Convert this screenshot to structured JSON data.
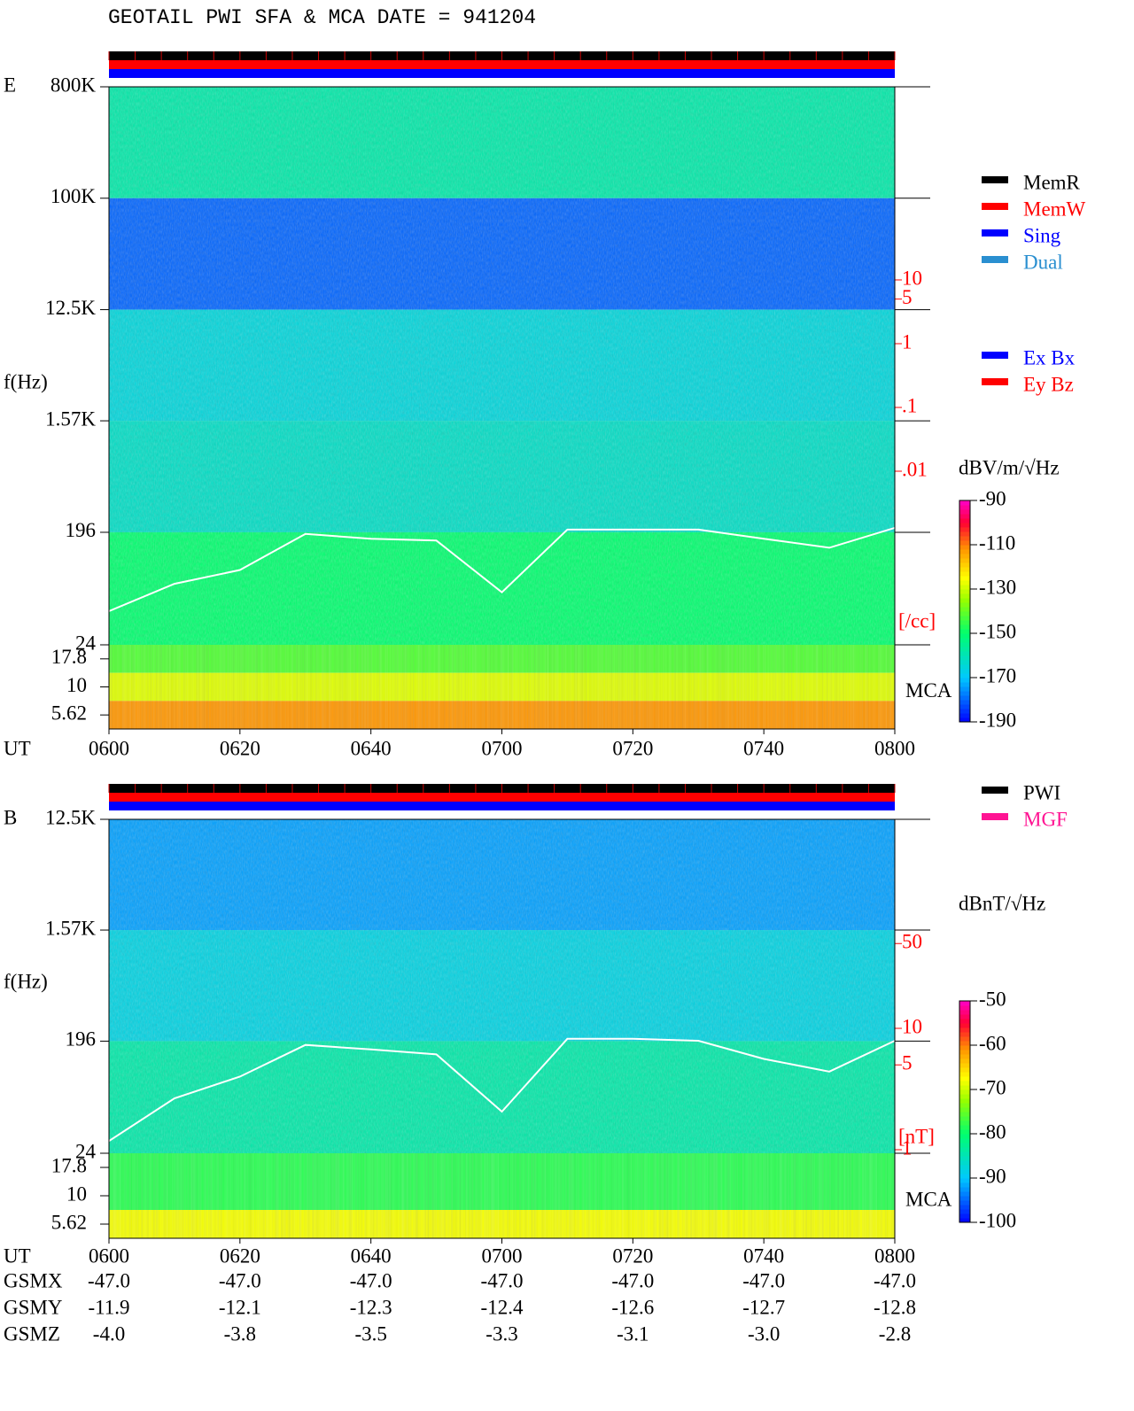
{
  "title": "GEOTAIL  PWI SFA & MCA   DATE = 941204",
  "legend_modes": [
    {
      "name": "MemR",
      "color": "#000000"
    },
    {
      "name": "MemW",
      "color": "#ff0000"
    },
    {
      "name": "Sing",
      "color": "#0000ff"
    },
    {
      "name": "Dual",
      "color": "#2a8fd0"
    }
  ],
  "legend_components": [
    {
      "name": "Ex Bx",
      "color": "#0000ff"
    },
    {
      "name": "Ey Bz",
      "color": "#ff0000"
    }
  ],
  "legend_sources": [
    {
      "name": "PWI",
      "color": "#000000"
    },
    {
      "name": "MGF",
      "color": "#ff1493"
    }
  ],
  "chart_data": [
    {
      "type": "spectrogram",
      "panel": "E",
      "ylabel": "f(Hz)",
      "xlabel": "UT",
      "yscale": "log",
      "categories": [
        "0600",
        "0620",
        "0640",
        "0700",
        "0720",
        "0740",
        "0800"
      ],
      "ylim": [
        24,
        800000
      ],
      "yticks": [
        {
          "value": 800000,
          "label": "800K"
        },
        {
          "value": 100000,
          "label": "100K"
        },
        {
          "value": 12500,
          "label": "12.5K"
        },
        {
          "value": 1570,
          "label": "1.57K"
        },
        196,
        24
      ],
      "band_levels": [
        -158,
        -180,
        -165,
        -162,
        -150
      ],
      "mca_label": "MCA",
      "mca_yticks": [
        17.8,
        10,
        5.62
      ],
      "mca_levels": [
        -142,
        -128,
        -112
      ],
      "y2ticks": [
        10,
        5,
        1,
        {
          "value": 0.1,
          "label": ".1"
        },
        {
          "value": 0.01,
          "label": ".01"
        }
      ],
      "y2label": "[/cc]",
      "line": {
        "axis": "y",
        "x": [
          "0600",
          "0610",
          "0620",
          "0630",
          "0640",
          "0650",
          "0700",
          "0710",
          "0720",
          "0730",
          "0740",
          "0750",
          "0800"
        ],
        "values": [
          45,
          75,
          97,
          190,
          174,
          168,
          64,
          206,
          206,
          206,
          174,
          147,
          213
        ]
      },
      "colorbar": {
        "label": "dBV/m/√Hz",
        "clim": [
          -190,
          -90
        ],
        "ticks": [
          -90,
          -110,
          -130,
          -150,
          -170,
          -190
        ]
      }
    },
    {
      "type": "spectrogram",
      "panel": "B",
      "ylabel": "f(Hz)",
      "xlabel": "UT",
      "yscale": "log",
      "categories": [
        "0600",
        "0620",
        "0640",
        "0700",
        "0720",
        "0740",
        "0800"
      ],
      "ylim": [
        24,
        12500
      ],
      "yticks": [
        {
          "value": 12500,
          "label": "12.5K"
        },
        {
          "value": 1570,
          "label": "1.57K"
        },
        196,
        24
      ],
      "band_levels": [
        -92,
        -88,
        -84
      ],
      "mca_label": "MCA",
      "mca_yticks": [
        17.8,
        10,
        5.62
      ],
      "mca_levels": [
        -78,
        -78,
        -68
      ],
      "y2ticks": [
        50,
        10,
        5,
        1
      ],
      "y2label": "[nT]",
      "line": {
        "axis": "y2",
        "x": [
          "0600",
          "0610",
          "0620",
          "0630",
          "0640",
          "0650",
          "0700",
          "0710",
          "0720",
          "0730",
          "0740",
          "0750",
          "0800"
        ],
        "values": [
          1.18,
          2.65,
          4.0,
          7.3,
          6.7,
          6.1,
          2.06,
          8.2,
          8.2,
          7.9,
          5.6,
          4.4,
          7.9
        ]
      },
      "colorbar": {
        "label": "dBnT/√Hz",
        "clim": [
          -100,
          -50
        ],
        "ticks": [
          -50,
          -60,
          -70,
          -80,
          -90,
          -100
        ]
      }
    }
  ],
  "orbit": {
    "rows": [
      {
        "label": "GSMX",
        "values": [
          "-47.0",
          "-47.0",
          "-47.0",
          "-47.0",
          "-47.0",
          "-47.0",
          "-47.0"
        ]
      },
      {
        "label": "GSMY",
        "values": [
          "-11.9",
          "-12.1",
          "-12.3",
          "-12.4",
          "-12.6",
          "-12.7",
          "-12.8"
        ]
      },
      {
        "label": "GSMZ",
        "values": [
          "-4.0",
          "-3.8",
          "-3.5",
          "-3.3",
          "-3.1",
          "-3.0",
          "-2.8"
        ]
      }
    ]
  }
}
